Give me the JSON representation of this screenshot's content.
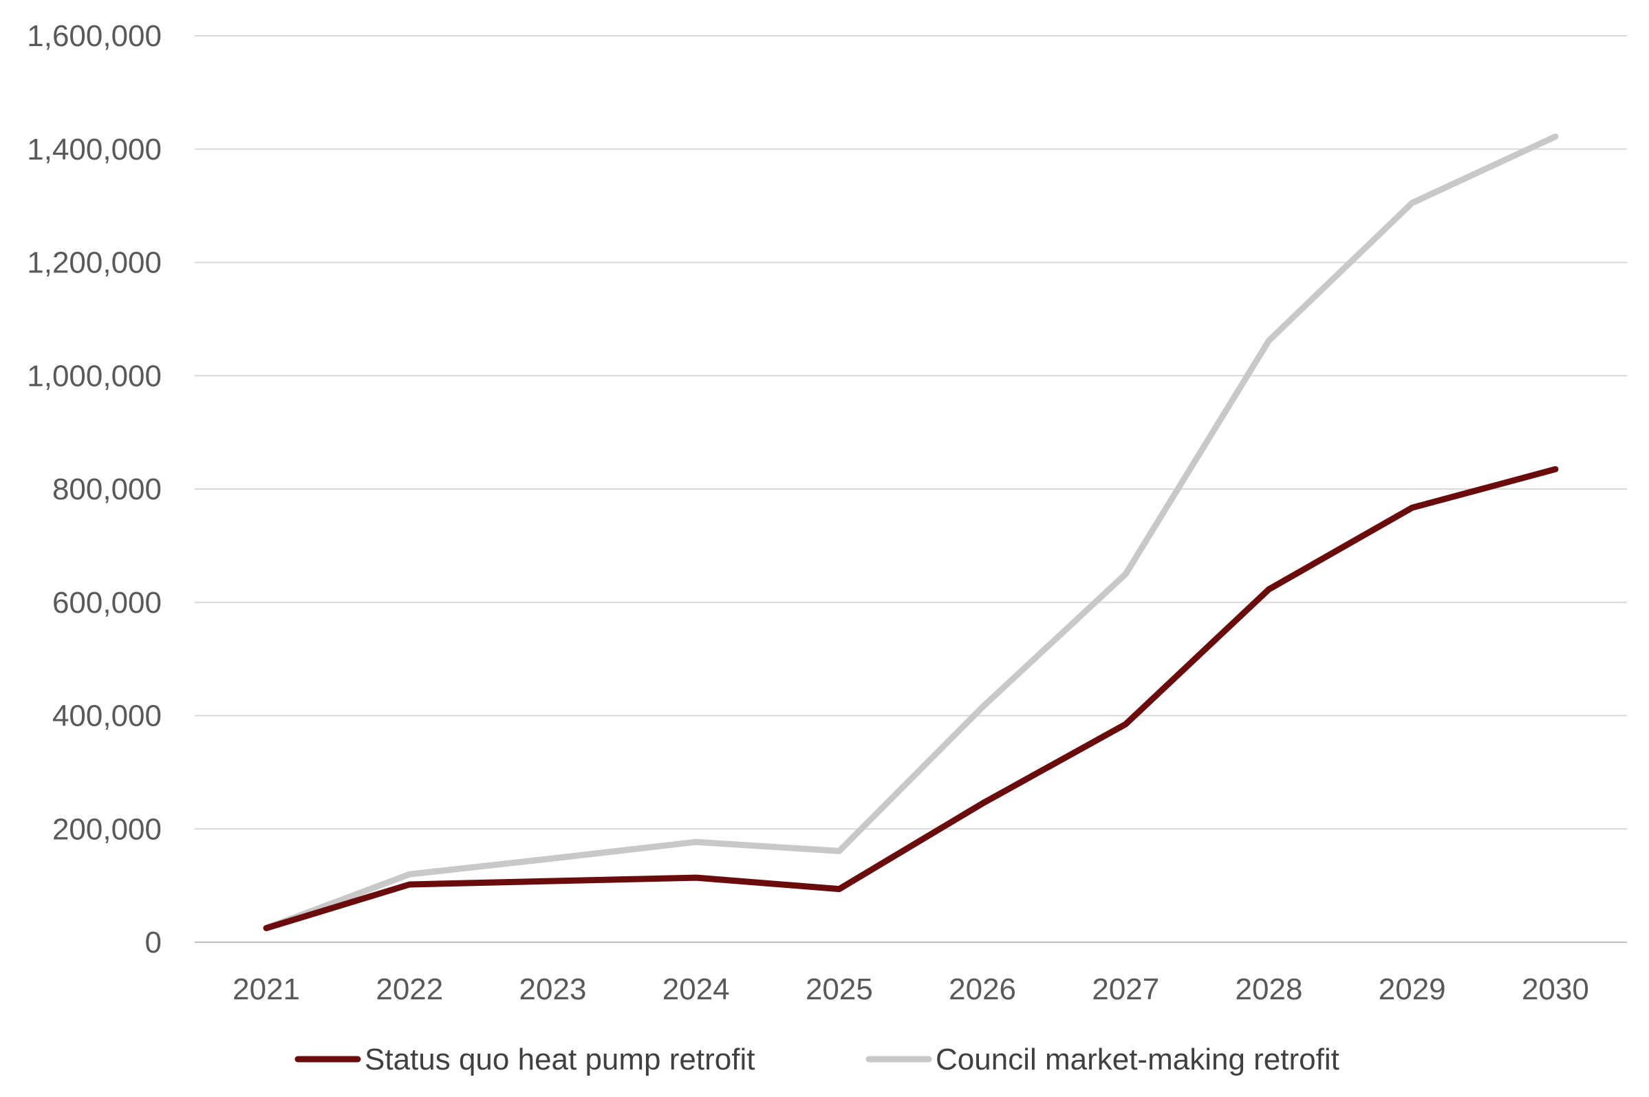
{
  "chart_data": {
    "type": "line",
    "title": "",
    "xlabel": "",
    "ylabel": "",
    "x": [
      "2021",
      "2022",
      "2023",
      "2024",
      "2025",
      "2026",
      "2027",
      "2028",
      "2029",
      "2030"
    ],
    "ylim": [
      0,
      1600000
    ],
    "yticks": [
      "0",
      "200,000",
      "400,000",
      "600,000",
      "800,000",
      "1,000,000",
      "1,200,000",
      "1,400,000",
      "1,600,000"
    ],
    "grid": "horizontal",
    "legend_position": "bottom",
    "series": [
      {
        "name": "Status quo heat pump retrofit",
        "color": "#6b0c0c",
        "values": [
          25000,
          102000,
          108000,
          114000,
          94000,
          245000,
          385000,
          623000,
          767000,
          835000
        ]
      },
      {
        "name": "Council market-making retrofit",
        "color": "#c8c8c8",
        "values": [
          25000,
          120000,
          148000,
          177000,
          161000,
          415000,
          650000,
          1062000,
          1305000,
          1422000
        ]
      }
    ]
  }
}
